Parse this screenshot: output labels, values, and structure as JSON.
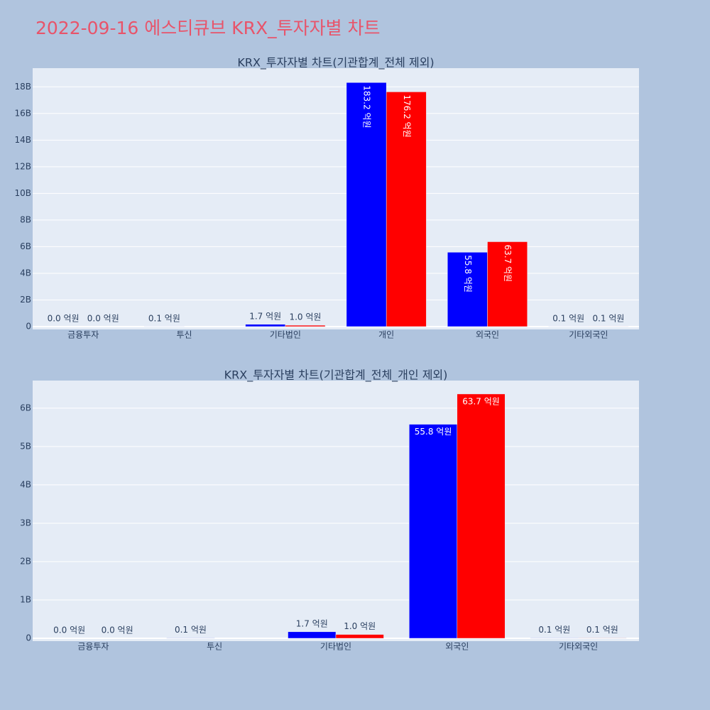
{
  "title": "2022-09-16 에스티큐브 KRX_투자자별 차트",
  "chart_data": [
    {
      "type": "bar",
      "title": "KRX_투자자별 차트(기관합계_전체 제외)",
      "categories": [
        "금융투자",
        "투신",
        "기타법인",
        "개인",
        "외국인",
        "기타외국인"
      ],
      "series": [
        {
          "color": "#0000ff",
          "values": [
            0,
            10000000,
            170000000,
            18320000000,
            5580000000,
            10000000
          ],
          "value_labels": [
            "0.0 억원",
            "0.1 억원",
            "1.7 억원",
            "183.2 억원",
            "55.8 억원",
            "0.1 억원"
          ]
        },
        {
          "color": "#ff0000",
          "values": [
            0,
            null,
            100000000,
            17620000000,
            6370000000,
            10000000
          ],
          "value_labels": [
            "0.0 억원",
            null,
            "1.0 억원",
            "176.2 억원",
            "63.7 억원",
            "0.1 억원"
          ]
        }
      ],
      "ylim": [
        0,
        19400000000
      ],
      "yticks": [
        0,
        {
          "value": 2000000000,
          "label": "2B"
        },
        {
          "value": 4000000000,
          "label": "4B"
        },
        {
          "value": 6000000000,
          "label": "6B"
        },
        {
          "value": 8000000000,
          "label": "8B"
        },
        {
          "value": 10000000000,
          "label": "10B"
        },
        {
          "value": 12000000000,
          "label": "12B"
        },
        {
          "value": 14000000000,
          "label": "14B"
        },
        {
          "value": 16000000000,
          "label": "16B"
        },
        {
          "value": 18000000000,
          "label": "18B"
        }
      ],
      "grid": true
    },
    {
      "type": "bar",
      "title": "KRX_투자자별 차트(기관합계_전체_개인 제외)",
      "categories": [
        "금융투자",
        "투신",
        "기타법인",
        "외국인",
        "기타외국인"
      ],
      "series": [
        {
          "color": "#0000ff",
          "values": [
            0,
            10000000,
            170000000,
            5580000000,
            10000000
          ],
          "value_labels": [
            "0.0 억원",
            "0.1 억원",
            "1.7 억원",
            "55.8 억원",
            "0.1 억원"
          ]
        },
        {
          "color": "#ff0000",
          "values": [
            0,
            null,
            100000000,
            6370000000,
            10000000
          ],
          "value_labels": [
            "0.0 억원",
            null,
            "1.0 억원",
            "63.7 억원",
            "0.1 억원"
          ]
        }
      ],
      "ylim": [
        0,
        6720000000
      ],
      "yticks": [
        0,
        {
          "value": 1000000000,
          "label": "1B"
        },
        {
          "value": 2000000000,
          "label": "2B"
        },
        {
          "value": 3000000000,
          "label": "3B"
        },
        {
          "value": 4000000000,
          "label": "4B"
        },
        {
          "value": 5000000000,
          "label": "5B"
        },
        {
          "value": 6000000000,
          "label": "6B"
        }
      ],
      "grid": true
    }
  ]
}
